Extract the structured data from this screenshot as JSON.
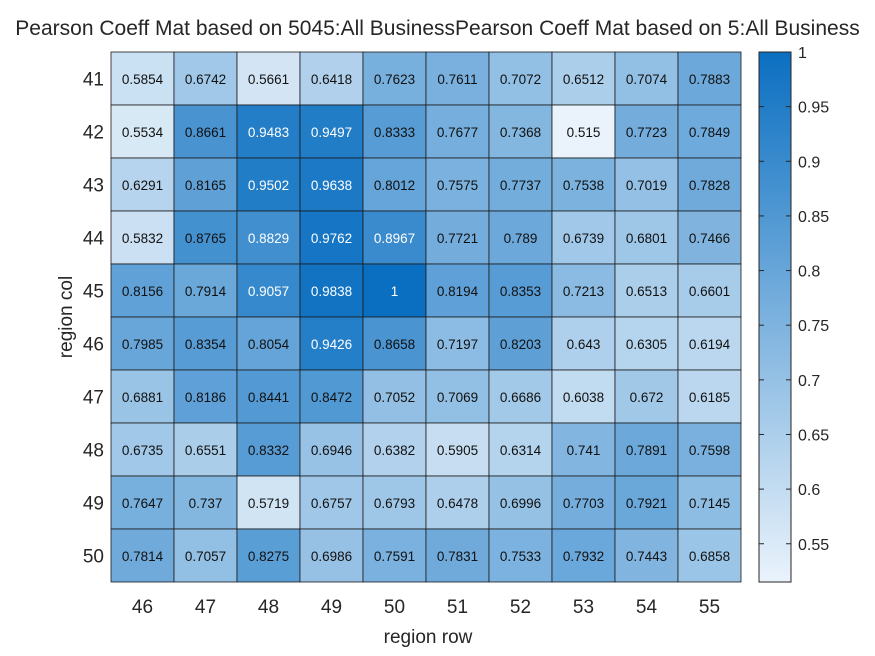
{
  "chart_data": {
    "type": "heatmap",
    "title": "Pearson Coeff Mat based on 5045:All BusinessPearson Coeff Mat based on 5:All Business",
    "xlabel": "region row",
    "ylabel": "region col",
    "x_ticks": [
      "46",
      "47",
      "48",
      "49",
      "50",
      "51",
      "52",
      "53",
      "54",
      "55"
    ],
    "y_ticks": [
      "41",
      "42",
      "43",
      "44",
      "45",
      "46",
      "47",
      "48",
      "49",
      "50"
    ],
    "values": [
      [
        "0.5854",
        "0.6742",
        "0.5661",
        "0.6418",
        "0.7623",
        "0.7611",
        "0.7072",
        "0.6512",
        "0.7074",
        "0.7883"
      ],
      [
        "0.5534",
        "0.8661",
        "0.9483",
        "0.9497",
        "0.8333",
        "0.7677",
        "0.7368",
        "0.515",
        "0.7723",
        "0.7849"
      ],
      [
        "0.6291",
        "0.8165",
        "0.9502",
        "0.9638",
        "0.8012",
        "0.7575",
        "0.7737",
        "0.7538",
        "0.7019",
        "0.7828"
      ],
      [
        "0.5832",
        "0.8765",
        "0.8829",
        "0.9762",
        "0.8967",
        "0.7721",
        "0.789",
        "0.6739",
        "0.6801",
        "0.7466"
      ],
      [
        "0.8156",
        "0.7914",
        "0.9057",
        "0.9838",
        "1",
        "0.8194",
        "0.8353",
        "0.7213",
        "0.6513",
        "0.6601"
      ],
      [
        "0.7985",
        "0.8354",
        "0.8054",
        "0.9426",
        "0.8658",
        "0.7197",
        "0.8203",
        "0.643",
        "0.6305",
        "0.6194"
      ],
      [
        "0.6881",
        "0.8186",
        "0.8441",
        "0.8472",
        "0.7052",
        "0.7069",
        "0.6686",
        "0.6038",
        "0.672",
        "0.6185"
      ],
      [
        "0.6735",
        "0.6551",
        "0.8332",
        "0.6946",
        "0.6382",
        "0.5905",
        "0.6314",
        "0.741",
        "0.7891",
        "0.7598"
      ],
      [
        "0.7647",
        "0.737",
        "0.5719",
        "0.6757",
        "0.6793",
        "0.6478",
        "0.6996",
        "0.7703",
        "0.7921",
        "0.7145"
      ],
      [
        "0.7814",
        "0.7057",
        "0.8275",
        "0.6986",
        "0.7591",
        "0.7831",
        "0.7533",
        "0.7932",
        "0.7443",
        "0.6858"
      ]
    ],
    "colorbar": {
      "range": [
        0.515,
        1
      ],
      "ticks": [
        "0.55",
        "0.6",
        "0.65",
        "0.7",
        "0.75",
        "0.8",
        "0.85",
        "0.9",
        "0.95",
        "1"
      ],
      "low_color": "#eaf3fb",
      "high_color": "#0b6fc1"
    },
    "text_threshold": 0.88,
    "text_dark": "#111111",
    "text_light": "#ffffff",
    "grid": false
  }
}
